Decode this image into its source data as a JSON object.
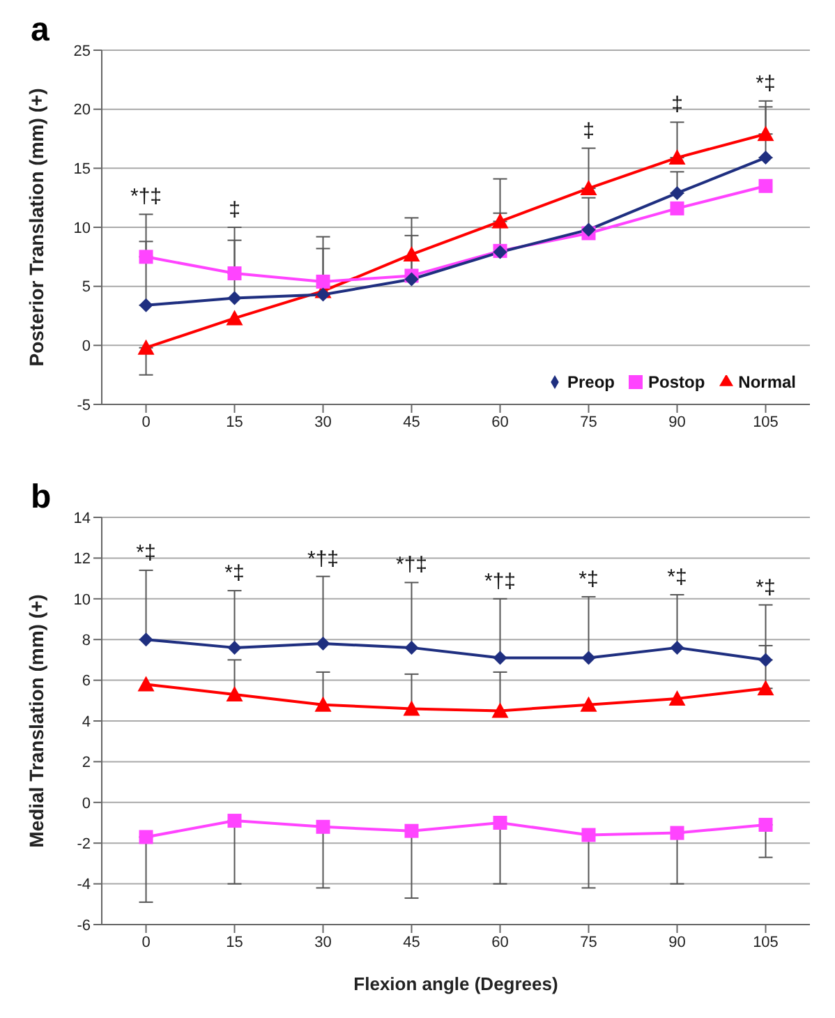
{
  "chart_data": [
    {
      "type": "line",
      "title": "a",
      "ylabel": "Posterior Translation (mm) (+)",
      "x": [
        0,
        15,
        30,
        45,
        60,
        75,
        90,
        105
      ],
      "xlim": [
        -7.5,
        112.5
      ],
      "xticks": [
        0,
        15,
        30,
        45,
        60,
        75,
        90,
        105
      ],
      "ylim": [
        -5,
        25
      ],
      "yticks": [
        -5,
        0,
        5,
        10,
        15,
        20,
        25
      ],
      "grid": "y",
      "legend": "bottom right",
      "series": [
        {
          "name": "Preop",
          "color": "#1f2f80",
          "marker": "diamond",
          "values": [
            3.4,
            4.0,
            4.3,
            5.6,
            7.9,
            9.8,
            12.9,
            15.9
          ],
          "errors": [
            [
              3.4,
              8.8
            ],
            [
              4.0,
              8.9
            ],
            [
              4.3,
              8.2
            ],
            [
              5.6,
              9.3
            ],
            [
              7.9,
              11.2
            ],
            [
              9.8,
              12.5
            ],
            [
              12.9,
              14.7
            ],
            [
              15.9,
              20.2
            ]
          ]
        },
        {
          "name": "Postop",
          "color": "#ff44ff",
          "marker": "square",
          "values": [
            7.5,
            6.1,
            5.4,
            5.9,
            8.0,
            9.5,
            11.6,
            13.5
          ],
          "errors": [
            [
              7.5,
              11.1
            ],
            [
              6.1,
              10.0
            ],
            [
              5.4,
              9.2
            ],
            [
              5.9,
              10.8
            ],
            null,
            null,
            null,
            null
          ]
        },
        {
          "name": "Normal",
          "color": "#ff0000",
          "marker": "triangle",
          "values": [
            -0.2,
            2.3,
            4.6,
            7.7,
            10.5,
            13.3,
            15.9,
            17.9
          ],
          "errors": [
            [
              -2.5,
              -0.2
            ],
            null,
            null,
            null,
            [
              10.5,
              14.1
            ],
            [
              13.3,
              16.7
            ],
            [
              15.9,
              18.9
            ],
            [
              17.9,
              20.7
            ]
          ]
        }
      ],
      "annotations": [
        {
          "text": "*†‡",
          "x": 0,
          "y": 11.1
        },
        {
          "text": "‡",
          "x": 15,
          "y": 10.0
        },
        {
          "text": "‡",
          "x": 75,
          "y": 16.7
        },
        {
          "text": "‡",
          "x": 90,
          "y": 18.9
        },
        {
          "text": "*‡",
          "x": 105,
          "y": 20.7
        }
      ]
    },
    {
      "type": "line",
      "title": "b",
      "xlabel": "Flexion angle (Degrees)",
      "ylabel": "Medial Translation (mm) (+)",
      "x": [
        0,
        15,
        30,
        45,
        60,
        75,
        90,
        105
      ],
      "xlim": [
        -7.5,
        112.5
      ],
      "xticks": [
        0,
        15,
        30,
        45,
        60,
        75,
        90,
        105
      ],
      "ylim": [
        -6,
        14
      ],
      "yticks": [
        -6,
        -4,
        -2,
        0,
        2,
        4,
        6,
        8,
        10,
        12,
        14
      ],
      "grid": "y",
      "series": [
        {
          "color": "#1f2f80",
          "marker": "diamond",
          "values": [
            8.0,
            7.6,
            7.8,
            7.6,
            7.1,
            7.1,
            7.6,
            7.0
          ],
          "errors": [
            [
              8.0,
              11.4
            ],
            [
              7.6,
              10.4
            ],
            [
              7.8,
              11.1
            ],
            [
              7.6,
              10.8
            ],
            [
              7.1,
              10.0
            ],
            [
              7.1,
              10.1
            ],
            [
              7.6,
              10.2
            ],
            [
              7.0,
              9.7
            ]
          ]
        },
        {
          "color": "#ff0000",
          "marker": "triangle",
          "values": [
            5.8,
            5.3,
            4.8,
            4.6,
            4.5,
            4.8,
            5.1,
            5.6
          ],
          "errors": [
            null,
            [
              5.3,
              7.0
            ],
            [
              4.8,
              6.4
            ],
            [
              4.6,
              6.3
            ],
            [
              4.5,
              6.4
            ],
            null,
            null,
            [
              5.6,
              7.7
            ]
          ]
        },
        {
          "color": "#ff44ff",
          "marker": "square",
          "values": [
            -1.7,
            -0.9,
            -1.2,
            -1.4,
            -1.0,
            -1.6,
            -1.5,
            -1.1
          ],
          "errors": [
            [
              -4.9,
              -1.7
            ],
            [
              -4.0,
              -0.9
            ],
            [
              -4.2,
              -1.2
            ],
            [
              -4.7,
              -1.4
            ],
            [
              -4.0,
              -1.0
            ],
            [
              -4.2,
              -1.6
            ],
            [
              -4.0,
              -1.5
            ],
            [
              -2.7,
              -1.1
            ]
          ]
        }
      ],
      "annotations": [
        {
          "text": "*‡",
          "x": 0,
          "y": 11.4
        },
        {
          "text": "*‡",
          "x": 15,
          "y": 10.4
        },
        {
          "text": "*†‡",
          "x": 30,
          "y": 11.1
        },
        {
          "text": "*†‡",
          "x": 45,
          "y": 10.8
        },
        {
          "text": "*†‡",
          "x": 60,
          "y": 10.0
        },
        {
          "text": "*‡",
          "x": 75,
          "y": 10.1
        },
        {
          "text": "*‡",
          "x": 90,
          "y": 10.2
        },
        {
          "text": "*‡",
          "x": 105,
          "y": 9.7
        }
      ]
    }
  ]
}
